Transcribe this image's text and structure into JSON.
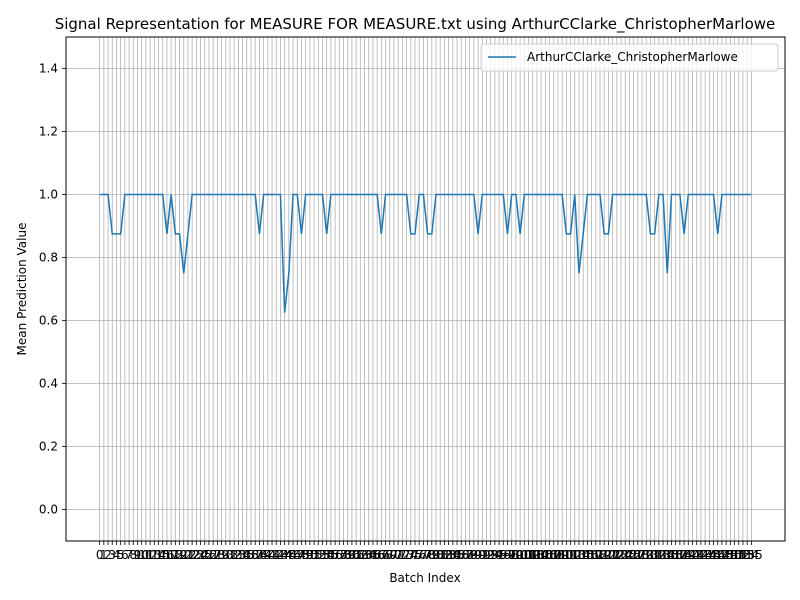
{
  "chart_data": {
    "type": "line",
    "title": "Signal Representation for MEASURE FOR MEASURE.txt using ArthurCClarke_ChristopherMarlowe",
    "xlabel": "Batch Index",
    "ylabel": "Mean Prediction Value",
    "xlim": [
      -8,
      163
    ],
    "ylim": [
      -0.1,
      1.5
    ],
    "yticks": [
      0.0,
      0.2,
      0.4,
      0.6,
      0.8,
      1.0,
      1.2,
      1.4
    ],
    "grid": true,
    "legend_position": "top-right",
    "x_tick_labels_visible_start": "0 1 2 3 4 5 ...",
    "series": [
      {
        "name": "ArthurCClarke_ChristopherMarlowe",
        "color": "#1f77b4",
        "values": [
          1.0,
          1.0,
          1.0,
          0.875,
          0.875,
          0.875,
          1.0,
          1.0,
          1.0,
          1.0,
          1.0,
          1.0,
          1.0,
          1.0,
          1.0,
          1.0,
          0.875,
          1.0,
          0.875,
          0.875,
          0.75,
          0.875,
          1.0,
          1.0,
          1.0,
          1.0,
          1.0,
          1.0,
          1.0,
          1.0,
          1.0,
          1.0,
          1.0,
          1.0,
          1.0,
          1.0,
          1.0,
          1.0,
          0.875,
          1.0,
          1.0,
          1.0,
          1.0,
          1.0,
          0.625,
          0.75,
          1.0,
          1.0,
          0.875,
          1.0,
          1.0,
          1.0,
          1.0,
          1.0,
          0.875,
          1.0,
          1.0,
          1.0,
          1.0,
          1.0,
          1.0,
          1.0,
          1.0,
          1.0,
          1.0,
          1.0,
          1.0,
          0.875,
          1.0,
          1.0,
          1.0,
          1.0,
          1.0,
          1.0,
          0.875,
          0.875,
          1.0,
          1.0,
          0.875,
          0.875,
          1.0,
          1.0,
          1.0,
          1.0,
          1.0,
          1.0,
          1.0,
          1.0,
          1.0,
          1.0,
          0.875,
          1.0,
          1.0,
          1.0,
          1.0,
          1.0,
          1.0,
          0.875,
          1.0,
          1.0,
          0.875,
          1.0,
          1.0,
          1.0,
          1.0,
          1.0,
          1.0,
          1.0,
          1.0,
          1.0,
          1.0,
          0.875,
          0.875,
          1.0,
          0.75,
          0.875,
          1.0,
          1.0,
          1.0,
          1.0,
          0.875,
          0.875,
          1.0,
          1.0,
          1.0,
          1.0,
          1.0,
          1.0,
          1.0,
          1.0,
          1.0,
          0.875,
          0.875,
          1.0,
          1.0,
          0.75,
          1.0,
          1.0,
          1.0,
          0.875,
          1.0,
          1.0,
          1.0,
          1.0,
          1.0,
          1.0,
          1.0,
          0.875,
          1.0,
          1.0,
          1.0,
          1.0,
          1.0,
          1.0,
          1.0,
          1.0
        ]
      }
    ]
  }
}
